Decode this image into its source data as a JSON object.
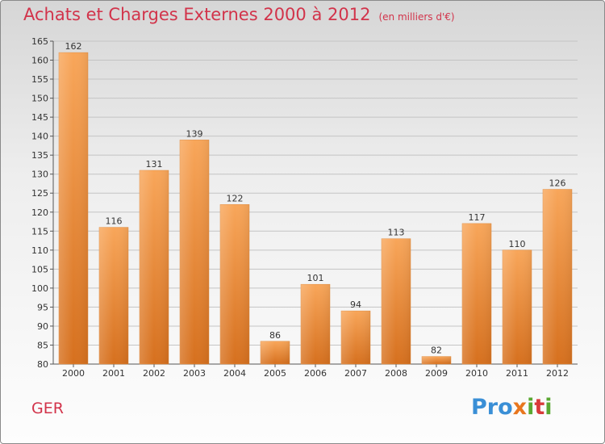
{
  "title": "Achats et Charges Externes 2000 à 2012",
  "subtitle": "(en milliers d'€)",
  "commune": "GER",
  "logo": "Proxiti",
  "colors": {
    "title": "#d2334a",
    "bar_top": "#f8a65a",
    "bar_bottom": "#d6701e"
  },
  "chart_data": {
    "type": "bar",
    "categories": [
      "2000",
      "2001",
      "2002",
      "2003",
      "2004",
      "2005",
      "2006",
      "2007",
      "2008",
      "2009",
      "2010",
      "2011",
      "2012"
    ],
    "values": [
      162,
      116,
      131,
      139,
      122,
      86,
      101,
      94,
      113,
      82,
      117,
      110,
      126
    ],
    "ylim": [
      80,
      165
    ],
    "yticks": [
      80,
      85,
      90,
      95,
      100,
      105,
      110,
      115,
      120,
      125,
      130,
      135,
      140,
      145,
      150,
      155,
      160,
      165
    ],
    "grid": "horizontal",
    "legend": "none"
  }
}
